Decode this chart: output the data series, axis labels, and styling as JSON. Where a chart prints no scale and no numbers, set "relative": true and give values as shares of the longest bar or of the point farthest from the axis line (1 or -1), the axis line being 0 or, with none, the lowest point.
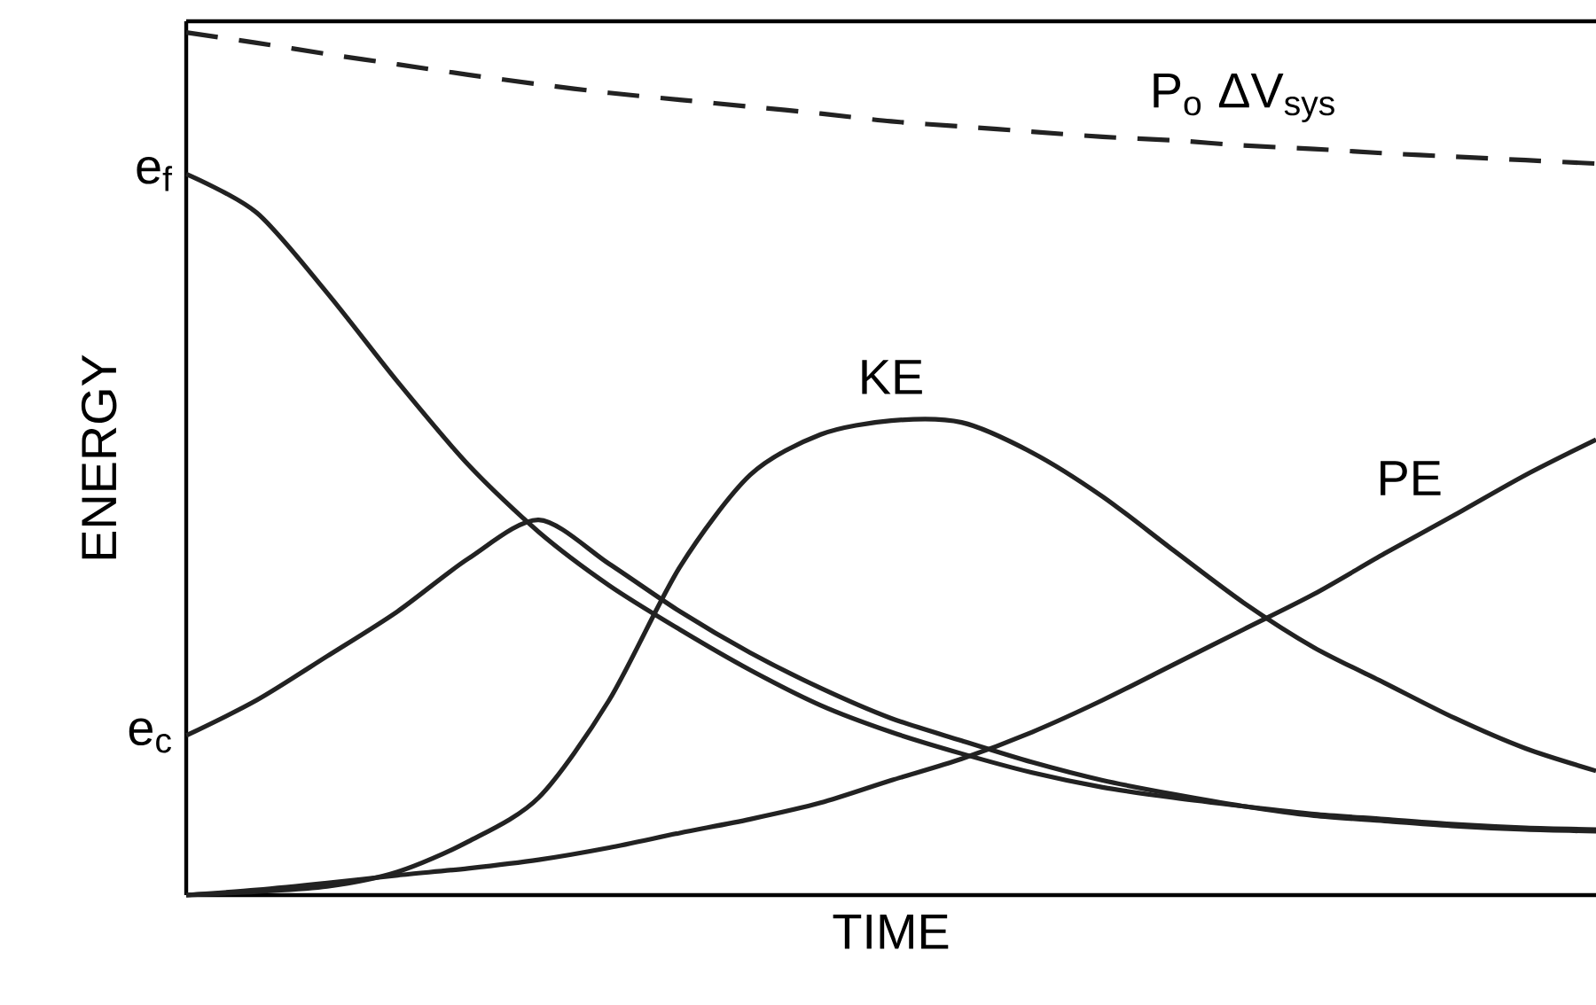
{
  "chart_data": {
    "type": "line",
    "relative": true,
    "xlabel": "TIME",
    "ylabel": "ENERGY",
    "categories": [
      null,
      null,
      null,
      null,
      null,
      null,
      null,
      null,
      null,
      null,
      null,
      null,
      null,
      null,
      null,
      null,
      null,
      null,
      null,
      null,
      null
    ],
    "series": [
      {
        "name": "P$_{o}$ ΔV$_{sys}$",
        "color": "#222222",
        "line_style": "dashed",
        "values": [
          1.0,
          0.988,
          0.975,
          0.963,
          0.951,
          0.94,
          0.93,
          0.922,
          0.914,
          0.906,
          0.897,
          0.891,
          0.885,
          0.879,
          0.875,
          0.869,
          0.865,
          0.86,
          0.856,
          0.852,
          0.848
        ]
      },
      {
        "color": "#222222",
        "values": [
          0.836,
          0.791,
          0.698,
          0.595,
          0.499,
          0.421,
          0.359,
          0.308,
          0.261,
          0.22,
          0.189,
          0.164,
          0.142,
          0.125,
          0.113,
          0.103,
          0.094,
          0.088,
          0.082,
          0.078,
          0.076
        ]
      },
      {
        "color": "#222222",
        "values": [
          0.185,
          0.226,
          0.277,
          0.329,
          0.39,
          0.435,
          0.384,
          0.329,
          0.281,
          0.24,
          0.205,
          0.179,
          0.154,
          0.133,
          0.117,
          0.103,
          0.092,
          0.086,
          0.08,
          0.076,
          0.074
        ]
      },
      {
        "name": "KE",
        "color": "#222222",
        "values": [
          0.0,
          0.004,
          0.01,
          0.027,
          0.062,
          0.113,
          0.226,
          0.38,
          0.487,
          0.534,
          0.55,
          0.548,
          0.513,
          0.462,
          0.4,
          0.339,
          0.287,
          0.246,
          0.205,
          0.17,
          0.144
        ]
      },
      {
        "name": "PE",
        "color": "#222222",
        "values": [
          0.0,
          0.006,
          0.014,
          0.023,
          0.031,
          0.041,
          0.055,
          0.072,
          0.088,
          0.107,
          0.133,
          0.158,
          0.189,
          0.226,
          0.267,
          0.308,
          0.349,
          0.396,
          0.441,
          0.487,
          0.528
        ]
      }
    ],
    "annotations": [
      "e$_{f}$",
      "e$_{c}$"
    ],
    "line_style": "solid",
    "marker": "none"
  }
}
